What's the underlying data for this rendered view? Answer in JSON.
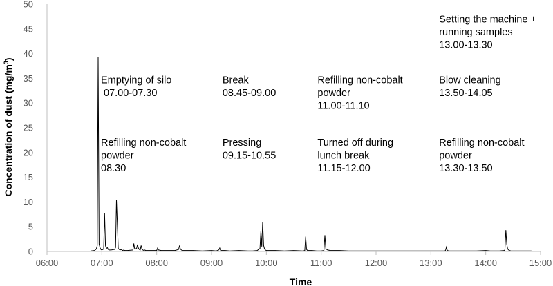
{
  "chart_data": {
    "type": "line",
    "title": "",
    "xlabel": "Time",
    "ylabel": "Concentration of dust (mg/m³)",
    "ylabel_parts": {
      "main": "Concentration of dust (mg/m",
      "sup": "3",
      "close": ")"
    },
    "xlim": [
      "06:00",
      "15:00"
    ],
    "ylim": [
      0,
      50
    ],
    "x_ticks": [
      "06:00",
      "07:00",
      "08:00",
      "09:00",
      "10:00",
      "11:00",
      "12:00",
      "13:00",
      "14:00",
      "15:00"
    ],
    "y_ticks": [
      0,
      5,
      10,
      15,
      20,
      25,
      30,
      35,
      40,
      45,
      50
    ],
    "grid": false,
    "legend": "none",
    "series_color": "#000000",
    "series": [
      {
        "x": [
          "06:48",
          "06:52",
          "06:54",
          "06:55",
          "06:56",
          "06:57",
          "06:58",
          "06:59",
          "07:00",
          "07:02",
          "07:03",
          "07:04",
          "07:05",
          "07:06",
          "07:07",
          "07:08",
          "07:10",
          "07:14",
          "07:15",
          "07:16",
          "07:18",
          "07:19",
          "07:20",
          "07:21",
          "07:22",
          "07:23",
          "07:24",
          "07:25",
          "07:26",
          "07:28",
          "07:34",
          "07:35",
          "07:36",
          "07:38",
          "07:39",
          "07:40",
          "07:41",
          "07:42",
          "07:43",
          "07:44",
          "07:45",
          "07:46",
          "07:47",
          "07:48",
          "07:50",
          "07:55",
          "08:00",
          "08:01",
          "08:02",
          "08:05",
          "08:10",
          "08:20",
          "08:24",
          "08:25",
          "08:26",
          "08:27",
          "08:28",
          "08:30",
          "08:40",
          "08:50",
          "09:00",
          "09:05",
          "09:08",
          "09:09",
          "09:10",
          "09:15",
          "09:20",
          "09:30",
          "09:40",
          "09:45",
          "09:50",
          "09:53",
          "09:54",
          "09:55",
          "09:56",
          "09:57",
          "09:58",
          "09:59",
          "10:00",
          "10:05",
          "10:10",
          "10:20",
          "10:30",
          "10:40",
          "10:42",
          "10:43",
          "10:44",
          "10:45",
          "10:50",
          "10:55",
          "11:00",
          "11:03",
          "11:04",
          "11:05",
          "11:06",
          "11:07",
          "11:10",
          "11:20",
          "11:30",
          "11:40",
          "11:50",
          "12:00",
          "12:10",
          "12:20",
          "12:30",
          "12:40",
          "12:50",
          "13:00",
          "13:05",
          "13:10",
          "13:15",
          "13:16",
          "13:17",
          "13:18",
          "13:20",
          "13:30",
          "13:40",
          "13:50",
          "14:00",
          "14:05",
          "14:10",
          "14:15",
          "14:20",
          "14:21",
          "14:22",
          "14:23",
          "14:24",
          "14:25",
          "14:26",
          "14:28",
          "14:30",
          "14:40",
          "14:50"
        ],
        "values": [
          0.1,
          0.2,
          0.5,
          1.2,
          39.3,
          1.5,
          0.8,
          0.4,
          0.3,
          0.5,
          7.8,
          1.2,
          0.6,
          0.8,
          0.4,
          0.3,
          0.3,
          0.4,
          0.8,
          10.4,
          0.6,
          0.4,
          0.3,
          0.4,
          0.3,
          0.2,
          0.3,
          0.2,
          0.2,
          0.2,
          0.3,
          1.6,
          0.5,
          0.6,
          1.4,
          0.7,
          0.4,
          0.3,
          1.2,
          0.4,
          0.3,
          0.2,
          0.3,
          0.2,
          0.2,
          0.2,
          0.2,
          0.7,
          0.3,
          0.2,
          0.2,
          0.2,
          0.4,
          1.2,
          0.5,
          0.3,
          0.2,
          0.2,
          0.2,
          0.1,
          0.2,
          0.1,
          0.3,
          0.7,
          0.2,
          0.2,
          0.1,
          0.2,
          0.1,
          0.1,
          0.2,
          0.6,
          4.1,
          1.0,
          6.0,
          1.2,
          0.5,
          0.3,
          0.2,
          0.2,
          0.2,
          0.1,
          0.2,
          0.1,
          0.2,
          3.0,
          0.4,
          0.2,
          0.2,
          0.1,
          0.1,
          0.2,
          3.3,
          0.6,
          0.4,
          0.3,
          0.2,
          0.2,
          0.1,
          0.1,
          0.1,
          0.1,
          0.1,
          0.1,
          0.1,
          0.1,
          0.1,
          0.1,
          0.1,
          0.1,
          0.1,
          0.2,
          0.9,
          0.2,
          0.1,
          0.1,
          0.1,
          0.1,
          0.2,
          0.1,
          0.1,
          0.1,
          0.2,
          0.3,
          4.3,
          1.5,
          0.5,
          0.3,
          0.2,
          0.1,
          0.1,
          0.1,
          0.1
        ]
      }
    ],
    "annotations": [
      {
        "lines": [
          "Emptying of silo",
          " 07.00-07.30"
        ],
        "x": "06:59",
        "y": 34.0
      },
      {
        "lines": [
          "Refilling non-cobalt",
          "powder",
          "08.30"
        ],
        "x": "06:59",
        "y": 21.4
      },
      {
        "lines": [
          "Break",
          "08.45-09.00"
        ],
        "x": "09:12",
        "y": 34.0
      },
      {
        "lines": [
          "Pressing",
          "09.15-10.55"
        ],
        "x": "09:12",
        "y": 21.4
      },
      {
        "lines": [
          "Refilling non-cobalt",
          "powder",
          "11.00-11.10"
        ],
        "x": "10:56",
        "y": 34.0
      },
      {
        "lines": [
          "Turned off during",
          "lunch break",
          "11.15-12.00"
        ],
        "x": "10:56",
        "y": 21.4
      },
      {
        "lines": [
          "Setting the machine +",
          "running samples",
          "13.00-13.30"
        ],
        "x": "13:09",
        "y": 46.3
      },
      {
        "lines": [
          "Blow cleaning",
          "13.50-14.05"
        ],
        "x": "13:09",
        "y": 34.0
      },
      {
        "lines": [
          "Refilling non-cobalt",
          "powder",
          "13.30-13.50"
        ],
        "x": "13:09",
        "y": 21.4
      }
    ]
  }
}
